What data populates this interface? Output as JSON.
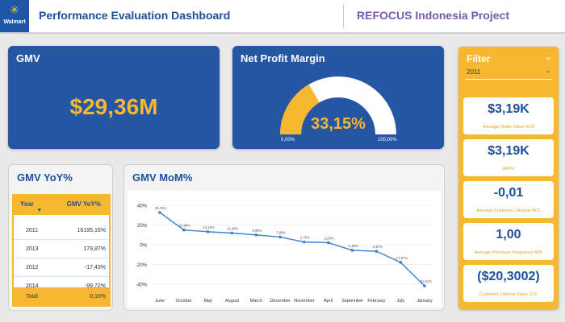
{
  "header": {
    "logo_text": "Walmart",
    "title": "Performance Evaluation Dashboard",
    "project": "REFOCUS Indonesia Project"
  },
  "gmv": {
    "title": "GMV",
    "value": "$29,36M"
  },
  "npm": {
    "title": "Net Profit Margin",
    "value": "33,15%",
    "percent": 33.15,
    "min_label": "0,00%",
    "max_label": "100,00%"
  },
  "yoy": {
    "title": "GMV YoY%",
    "col_year": "Year",
    "col_value": "GMV YoY%",
    "rows": [
      {
        "year": "2011",
        "value": "16195,16%"
      },
      {
        "year": "2013",
        "value": "179,87%"
      },
      {
        "year": "2012",
        "value": "-17,43%"
      },
      {
        "year": "2014",
        "value": "-99,72%"
      }
    ],
    "total_label": "Total",
    "total_value": "0,16%"
  },
  "mom": {
    "title": "GMV MoM%"
  },
  "chart_data": {
    "type": "line",
    "categories": [
      "June",
      "October",
      "May",
      "August",
      "March",
      "December",
      "November",
      "April",
      "September",
      "February",
      "July",
      "January"
    ],
    "values": [
      32.75,
      14.98,
      13.19,
      11.86,
      9.99,
      7.86,
      2.75,
      2.09,
      -5.68,
      -6.67,
      -17.87,
      -41.81
    ],
    "value_labels": [
      "32,75%",
      "14,98%",
      "13,19%",
      "11,86%",
      "9,99%",
      "7,86%",
      "2,75%",
      "2,09%",
      "-5,68%",
      "-6,67%",
      "-17,87%",
      "-41,81%"
    ],
    "y_ticks": [
      "40%",
      "20%",
      "0%",
      "-20%",
      "-40%"
    ],
    "ylim": [
      -45,
      45
    ],
    "color": "#3b7fd4"
  },
  "filter": {
    "title": "Filter",
    "selected_year": "2011",
    "chevron_icon": "chevron-down-icon"
  },
  "kpis": [
    {
      "value": "$3,19K",
      "label": "Average Order Value AOV"
    },
    {
      "value": "$3,19K",
      "label": "ARPU"
    },
    {
      "value": "-0,01",
      "label": "Average Customer Lifespan ACL"
    },
    {
      "value": "1,00",
      "label": "Average Purchase Frequency APF"
    },
    {
      "value": "($20,3002)",
      "label": "Customer Lifetime Value CLV"
    }
  ],
  "colors": {
    "brand_blue": "#2456a4",
    "accent_yellow": "#f7b731",
    "gauge_track": "#ffffff"
  }
}
